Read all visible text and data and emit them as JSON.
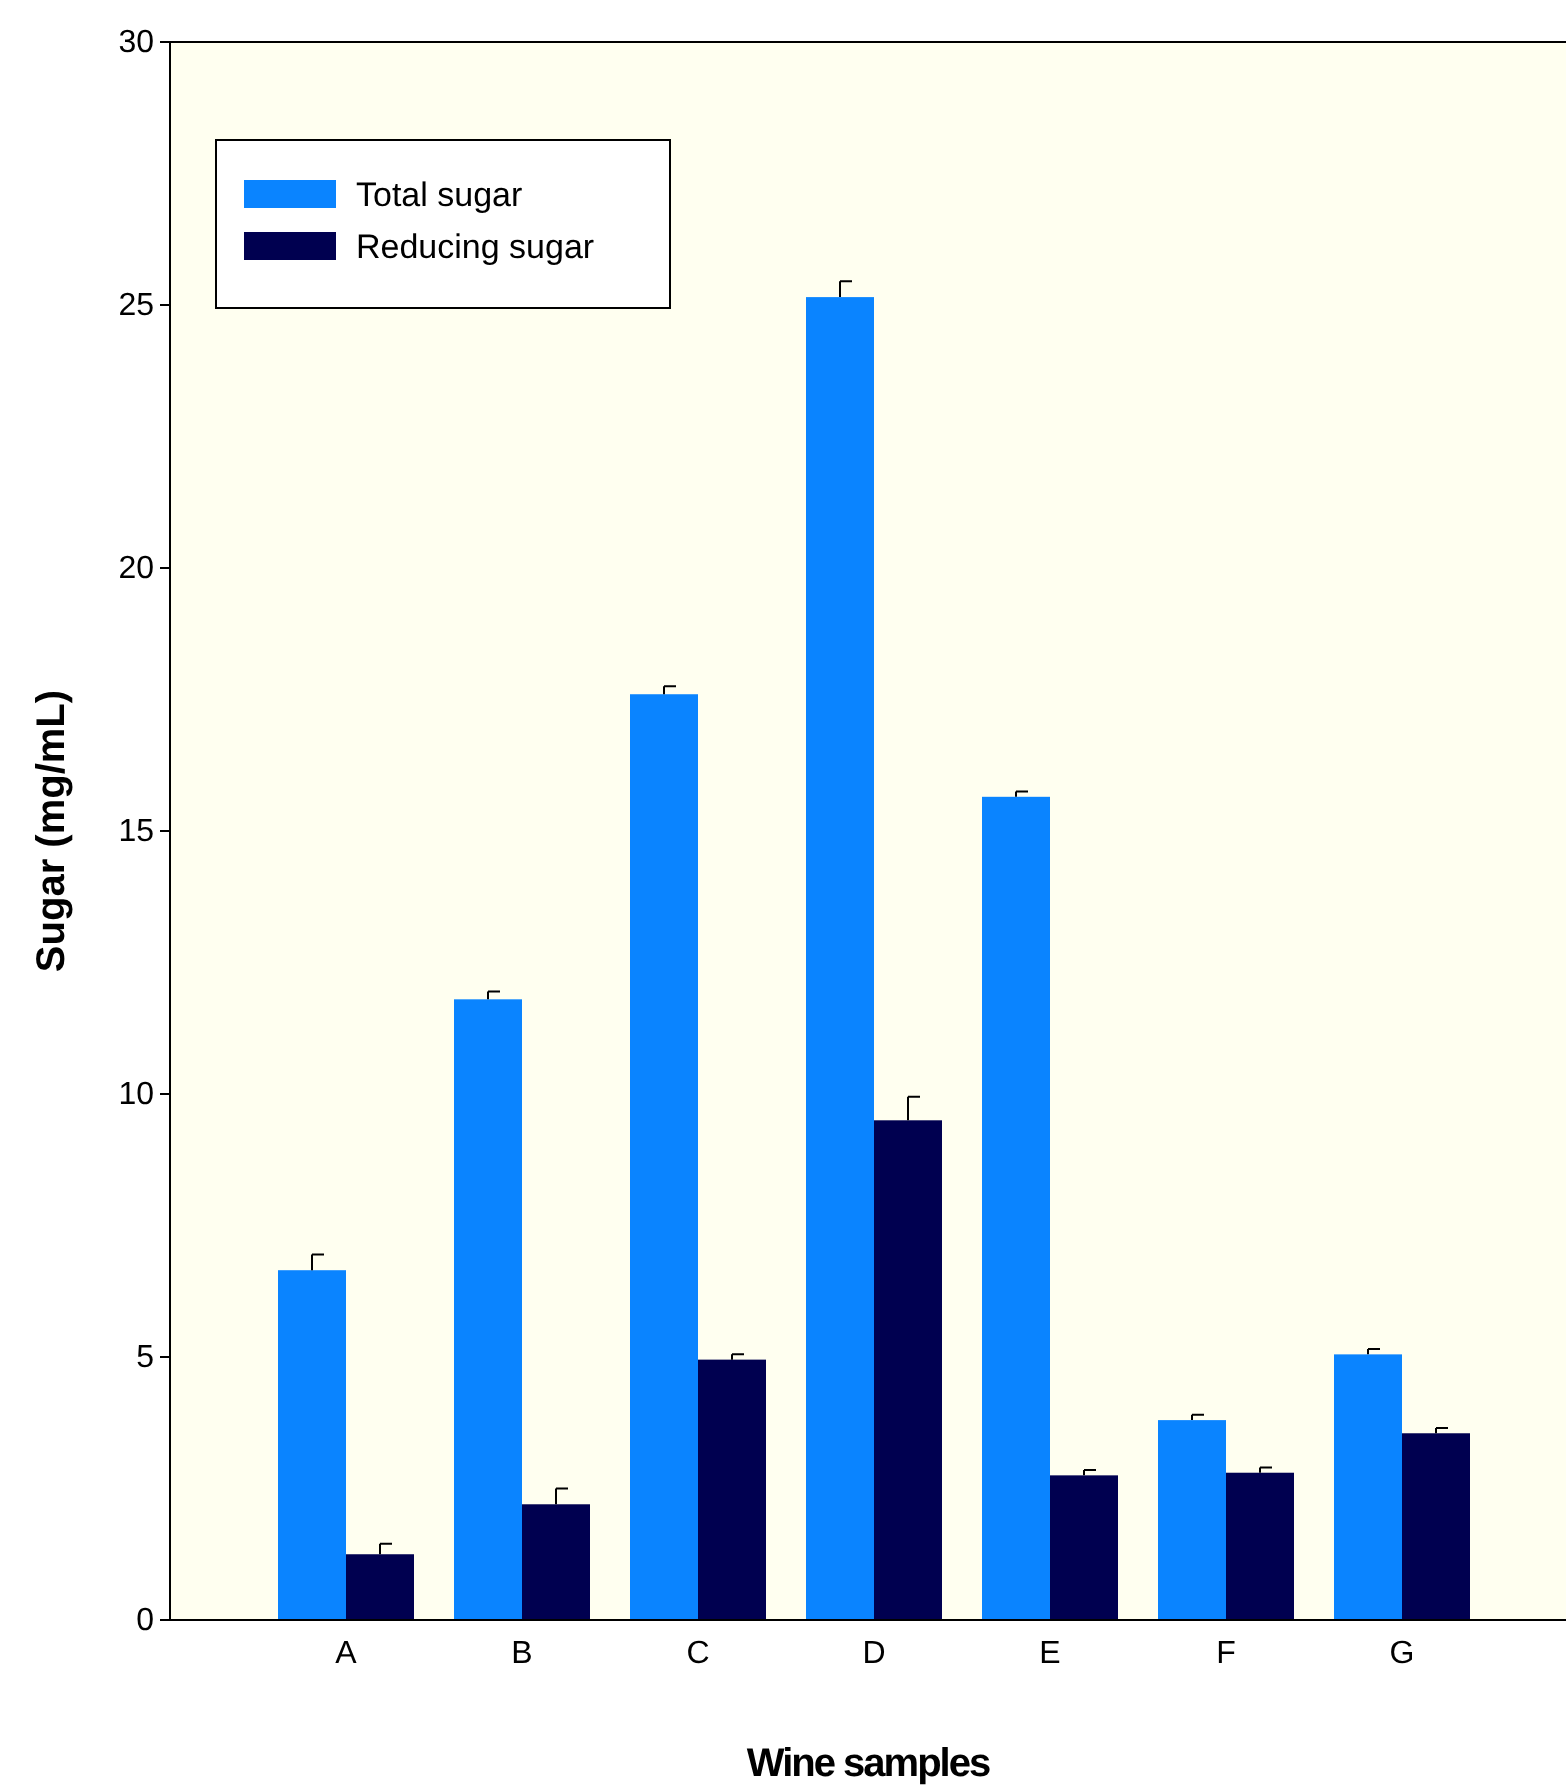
{
  "chart_data": {
    "type": "bar",
    "xlabel": "Wine samples",
    "ylabel": "Sugar (mg/mL)",
    "categories": [
      "A",
      "B",
      "C",
      "D",
      "E",
      "F",
      "G"
    ],
    "series": [
      {
        "name": "Total sugar",
        "color": "#0a84ff",
        "values": [
          6.65,
          11.8,
          17.6,
          25.15,
          15.65,
          3.8,
          5.05
        ],
        "errors": [
          0.3,
          0.15,
          0.15,
          0.3,
          0.1,
          0.1,
          0.1
        ]
      },
      {
        "name": "Reducing sugar",
        "color": "#000050",
        "values": [
          1.25,
          2.2,
          4.95,
          9.5,
          2.75,
          2.8,
          3.55
        ],
        "errors": [
          0.2,
          0.3,
          0.1,
          0.45,
          0.1,
          0.1,
          0.1
        ]
      }
    ],
    "ylim": [
      0,
      30
    ],
    "yticks": [
      0,
      5,
      10,
      15,
      20,
      25,
      30
    ],
    "grid": false,
    "legend": "top left"
  }
}
